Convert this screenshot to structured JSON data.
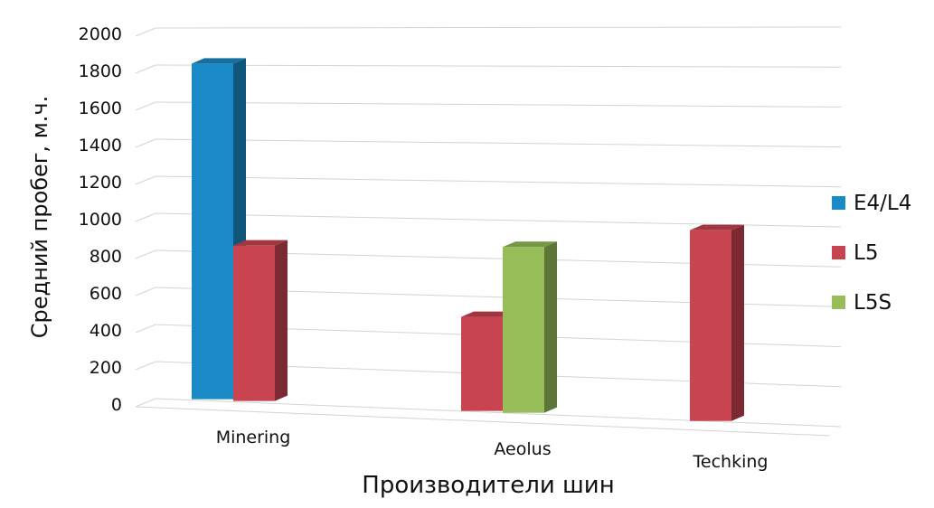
{
  "chart_data": {
    "type": "bar",
    "style": "3d-clustered-column",
    "categories": [
      "Minering",
      "Aeolus",
      "Techking"
    ],
    "series": [
      {
        "name": "E4/L4",
        "values": [
          1800,
          null,
          null
        ],
        "color": "#1a8ac6"
      },
      {
        "name": "L5",
        "values": [
          830,
          490,
          970
        ],
        "color": "#c84450"
      },
      {
        "name": "L5S",
        "values": [
          null,
          860,
          null
        ],
        "color": "#96bd58"
      }
    ],
    "xlabel": "Производители шин",
    "ylabel": "Средний пробег, м.ч.",
    "ylim": [
      0,
      2000
    ],
    "yticks": [
      0,
      200,
      400,
      600,
      800,
      1000,
      1200,
      1400,
      1600,
      1800,
      2000
    ],
    "grid": true,
    "legend": "right"
  }
}
